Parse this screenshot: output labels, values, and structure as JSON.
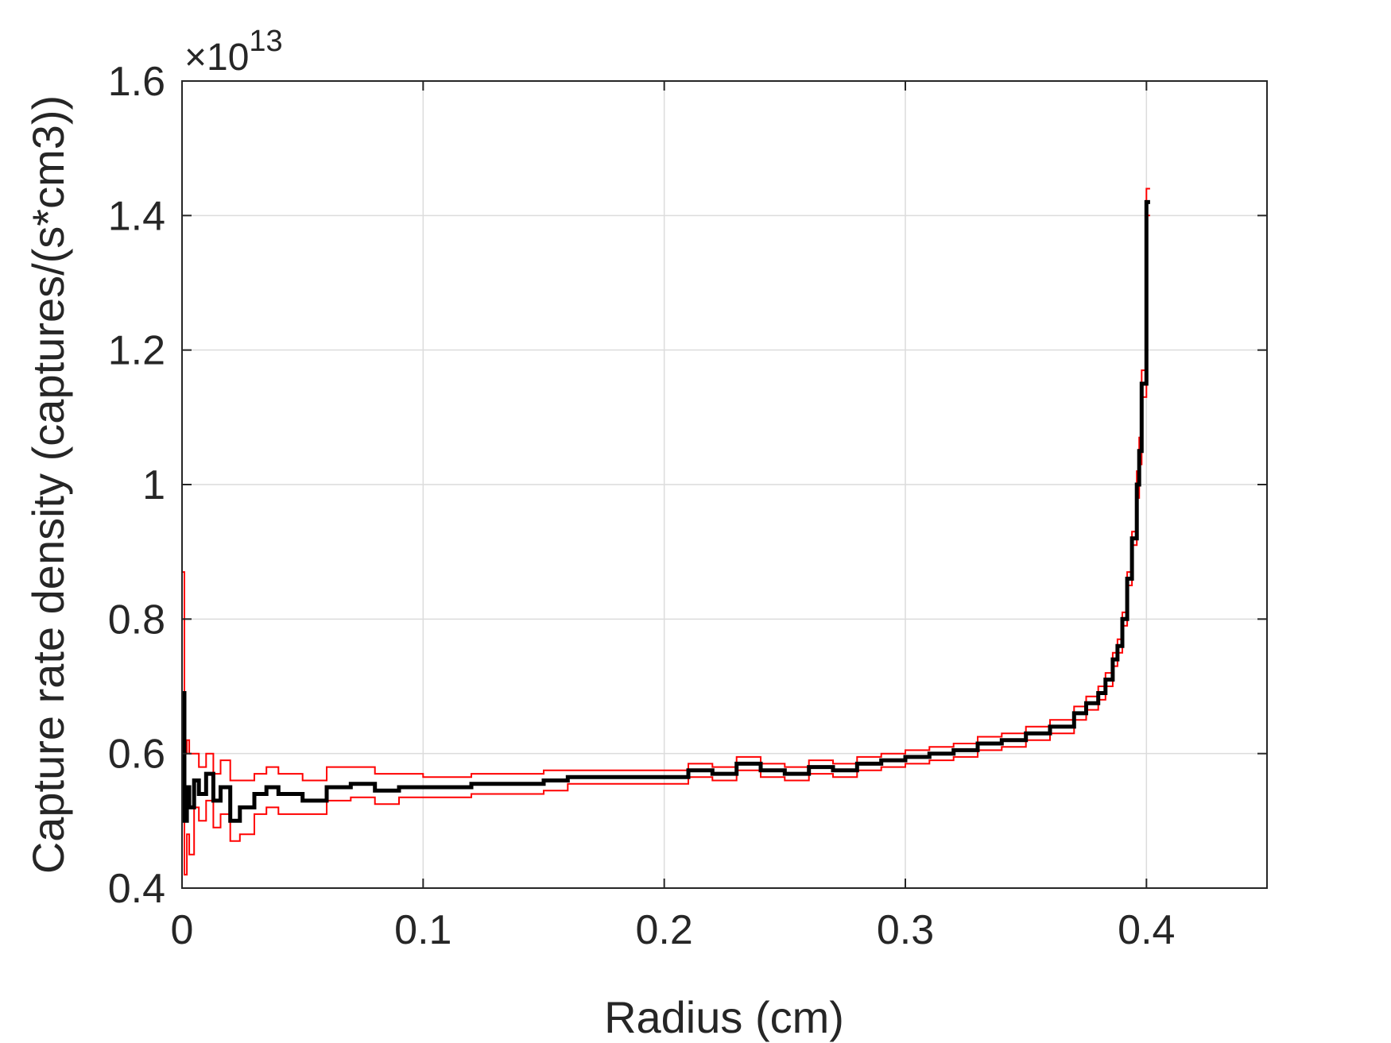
{
  "chart_data": {
    "type": "line",
    "title": "",
    "xlabel": "Radius (cm)",
    "ylabel": "Capture rate density (captures/(s*cm3))",
    "y_multiplier": {
      "base": "×10",
      "exponent": "13"
    },
    "xlim": [
      0,
      0.45
    ],
    "ylim": [
      0.4,
      1.6
    ],
    "grid": true,
    "x_ticks": [
      0,
      0.1,
      0.2,
      0.3,
      0.4
    ],
    "x_tick_labels": [
      "0",
      "0.1",
      "0.2",
      "0.3",
      "0.4"
    ],
    "y_ticks": [
      0.4,
      0.6,
      0.8,
      1.0,
      1.2,
      1.4,
      1.6
    ],
    "y_tick_labels": [
      "0.4",
      "0.6",
      "0.8",
      "1",
      "1.2",
      "1.4",
      "1.6"
    ],
    "series": [
      {
        "style": "stairs",
        "color": "#000000",
        "x": [
          0,
          0.001,
          0.002,
          0.003,
          0.005,
          0.007,
          0.01,
          0.013,
          0.016,
          0.02,
          0.024,
          0.03,
          0.035,
          0.04,
          0.05,
          0.06,
          0.07,
          0.08,
          0.09,
          0.1,
          0.12,
          0.14,
          0.15,
          0.16,
          0.18,
          0.2,
          0.21,
          0.22,
          0.23,
          0.24,
          0.25,
          0.26,
          0.27,
          0.28,
          0.29,
          0.3,
          0.31,
          0.32,
          0.33,
          0.34,
          0.35,
          0.36,
          0.37,
          0.375,
          0.38,
          0.383,
          0.386,
          0.388,
          0.39,
          0.392,
          0.394,
          0.396,
          0.397,
          0.398,
          0.399,
          0.4
        ],
        "values": [
          0.69,
          0.5,
          0.55,
          0.52,
          0.56,
          0.54,
          0.57,
          0.53,
          0.55,
          0.5,
          0.52,
          0.54,
          0.55,
          0.54,
          0.53,
          0.55,
          0.555,
          0.545,
          0.55,
          0.55,
          0.555,
          0.555,
          0.56,
          0.565,
          0.565,
          0.565,
          0.575,
          0.57,
          0.585,
          0.575,
          0.57,
          0.58,
          0.575,
          0.585,
          0.59,
          0.595,
          0.6,
          0.605,
          0.615,
          0.62,
          0.63,
          0.64,
          0.66,
          0.675,
          0.69,
          0.71,
          0.74,
          0.76,
          0.8,
          0.86,
          0.92,
          1.0,
          1.05,
          1.15,
          1.15,
          1.42
        ]
      },
      {
        "style": "stairs",
        "color": "#ff0000",
        "x": [
          0,
          0.001,
          0.002,
          0.003,
          0.005,
          0.007,
          0.01,
          0.013,
          0.016,
          0.02,
          0.024,
          0.03,
          0.035,
          0.04,
          0.05,
          0.06,
          0.07,
          0.08,
          0.09,
          0.1,
          0.12,
          0.14,
          0.15,
          0.16,
          0.18,
          0.2,
          0.21,
          0.22,
          0.23,
          0.24,
          0.25,
          0.26,
          0.27,
          0.28,
          0.29,
          0.3,
          0.31,
          0.32,
          0.33,
          0.34,
          0.35,
          0.36,
          0.37,
          0.375,
          0.38,
          0.383,
          0.386,
          0.388,
          0.39,
          0.392,
          0.394,
          0.396,
          0.397,
          0.398,
          0.399,
          0.4
        ],
        "values": [
          0.87,
          0.6,
          0.62,
          0.6,
          0.6,
          0.58,
          0.6,
          0.57,
          0.59,
          0.56,
          0.56,
          0.57,
          0.58,
          0.57,
          0.56,
          0.58,
          0.58,
          0.57,
          0.57,
          0.565,
          0.57,
          0.57,
          0.575,
          0.575,
          0.575,
          0.575,
          0.585,
          0.58,
          0.595,
          0.585,
          0.58,
          0.59,
          0.585,
          0.595,
          0.6,
          0.605,
          0.61,
          0.615,
          0.625,
          0.63,
          0.64,
          0.65,
          0.67,
          0.685,
          0.7,
          0.72,
          0.75,
          0.77,
          0.81,
          0.87,
          0.93,
          1.02,
          1.07,
          1.17,
          1.17,
          1.44
        ]
      },
      {
        "style": "stairs",
        "color": "#ff0000",
        "x": [
          0,
          0.001,
          0.002,
          0.003,
          0.005,
          0.007,
          0.01,
          0.013,
          0.016,
          0.02,
          0.024,
          0.03,
          0.035,
          0.04,
          0.05,
          0.06,
          0.07,
          0.08,
          0.09,
          0.1,
          0.12,
          0.14,
          0.15,
          0.16,
          0.18,
          0.2,
          0.21,
          0.22,
          0.23,
          0.24,
          0.25,
          0.26,
          0.27,
          0.28,
          0.29,
          0.3,
          0.31,
          0.32,
          0.33,
          0.34,
          0.35,
          0.36,
          0.37,
          0.375,
          0.38,
          0.383,
          0.386,
          0.388,
          0.39,
          0.392,
          0.394,
          0.396,
          0.397,
          0.398,
          0.399,
          0.4
        ],
        "values": [
          0.52,
          0.42,
          0.48,
          0.45,
          0.52,
          0.5,
          0.53,
          0.49,
          0.51,
          0.47,
          0.48,
          0.51,
          0.52,
          0.51,
          0.51,
          0.53,
          0.535,
          0.525,
          0.535,
          0.535,
          0.54,
          0.54,
          0.545,
          0.555,
          0.555,
          0.555,
          0.565,
          0.56,
          0.575,
          0.565,
          0.56,
          0.57,
          0.565,
          0.575,
          0.58,
          0.585,
          0.59,
          0.595,
          0.605,
          0.61,
          0.62,
          0.63,
          0.65,
          0.665,
          0.68,
          0.7,
          0.73,
          0.75,
          0.79,
          0.85,
          0.91,
          0.98,
          1.03,
          1.13,
          1.13,
          1.4
        ]
      }
    ]
  }
}
